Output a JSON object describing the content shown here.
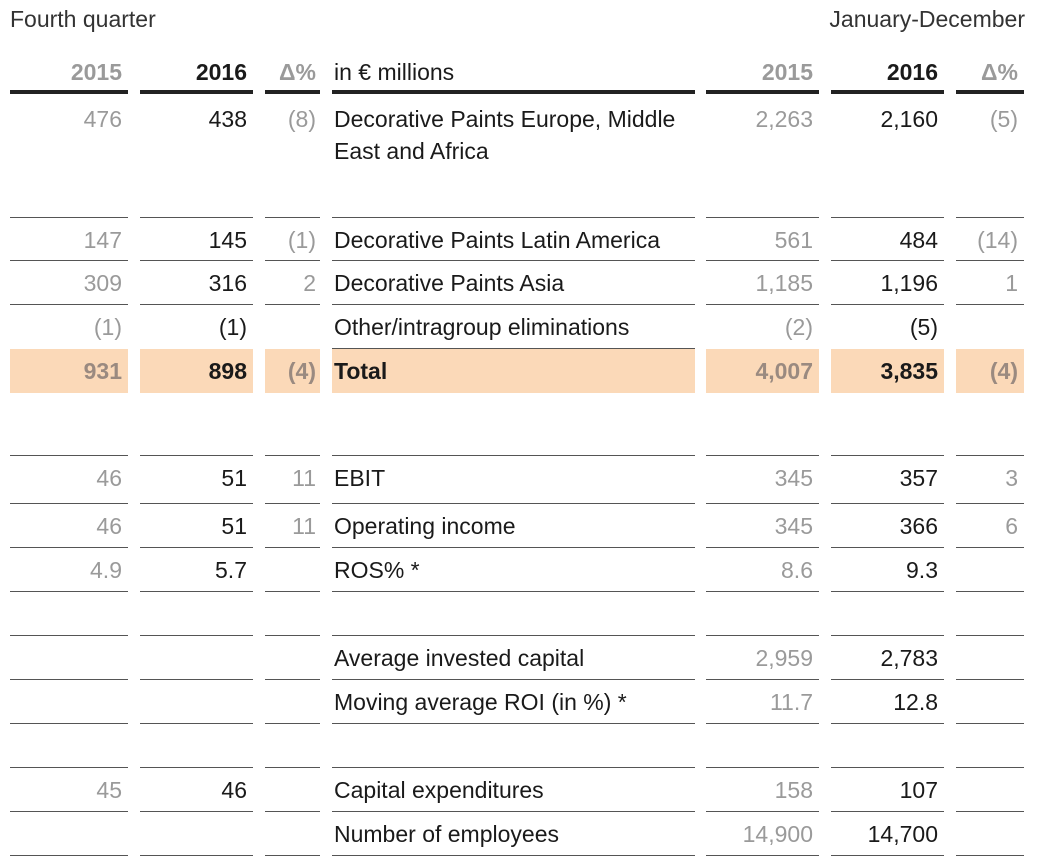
{
  "header": {
    "left_label": "Fourth quarter",
    "right_label": "January-December"
  },
  "columns": {
    "q_2015": "2015",
    "q_2016": "2016",
    "q_delta": "Δ%",
    "unit": "in € millions",
    "y_2015": "2015",
    "y_2016": "2016",
    "y_delta": "Δ%"
  },
  "rows": [
    {
      "q2015": "476",
      "q2016": "438",
      "qd": "(8)",
      "label": "Decorative Paints Europe, Middle East and Africa",
      "y2015": "2,263",
      "y2016": "2,160",
      "yd": "(5)"
    },
    {
      "q2015": "147",
      "q2016": "145",
      "qd": "(1)",
      "label": "Decorative Paints Latin America",
      "y2015": "561",
      "y2016": "484",
      "yd": "(14)"
    },
    {
      "q2015": "309",
      "q2016": "316",
      "qd": "2",
      "label": "Decorative Paints Asia",
      "y2015": "1,185",
      "y2016": "1,196",
      "yd": "1"
    },
    {
      "q2015": "(1)",
      "q2016": "(1)",
      "qd": "",
      "label": "Other/intragroup eliminations",
      "y2015": "(2)",
      "y2016": "(5)",
      "yd": ""
    },
    {
      "q2015": "931",
      "q2016": "898",
      "qd": "(4)",
      "label": "Total",
      "y2015": "4,007",
      "y2016": "3,835",
      "yd": "(4)"
    },
    {
      "q2015": "",
      "q2016": "",
      "qd": "",
      "label": "",
      "y2015": "",
      "y2016": "",
      "yd": ""
    },
    {
      "q2015": "46",
      "q2016": "51",
      "qd": "11",
      "label": "EBIT",
      "y2015": "345",
      "y2016": "357",
      "yd": "3"
    },
    {
      "q2015": "46",
      "q2016": "51",
      "qd": "11",
      "label": "Operating income",
      "y2015": "345",
      "y2016": "366",
      "yd": "6"
    },
    {
      "q2015": "4.9",
      "q2016": "5.7",
      "qd": "",
      "label": "ROS% *",
      "y2015": "8.6",
      "y2016": "9.3",
      "yd": ""
    },
    {
      "q2015": "",
      "q2016": "",
      "qd": "",
      "label": "",
      "y2015": "",
      "y2016": "",
      "yd": ""
    },
    {
      "q2015": "",
      "q2016": "",
      "qd": "",
      "label": "Average invested capital",
      "y2015": "2,959",
      "y2016": "2,783",
      "yd": ""
    },
    {
      "q2015": "",
      "q2016": "",
      "qd": "",
      "label": "Moving average ROI (in %) *",
      "y2015": "11.7",
      "y2016": "12.8",
      "yd": ""
    },
    {
      "q2015": "",
      "q2016": "",
      "qd": "",
      "label": "",
      "y2015": "",
      "y2016": "",
      "yd": ""
    },
    {
      "q2015": "45",
      "q2016": "46",
      "qd": "",
      "label": "Capital expenditures",
      "y2015": "158",
      "y2016": "107",
      "yd": ""
    },
    {
      "q2015": "",
      "q2016": "",
      "qd": "",
      "label": "Number of employees",
      "y2015": "14,900",
      "y2016": "14,700",
      "yd": ""
    }
  ],
  "colors": {
    "total_highlight": "#fbd9b8",
    "prior_year_text": "#9a9a9a",
    "current_year_text": "#1a1a1a"
  }
}
